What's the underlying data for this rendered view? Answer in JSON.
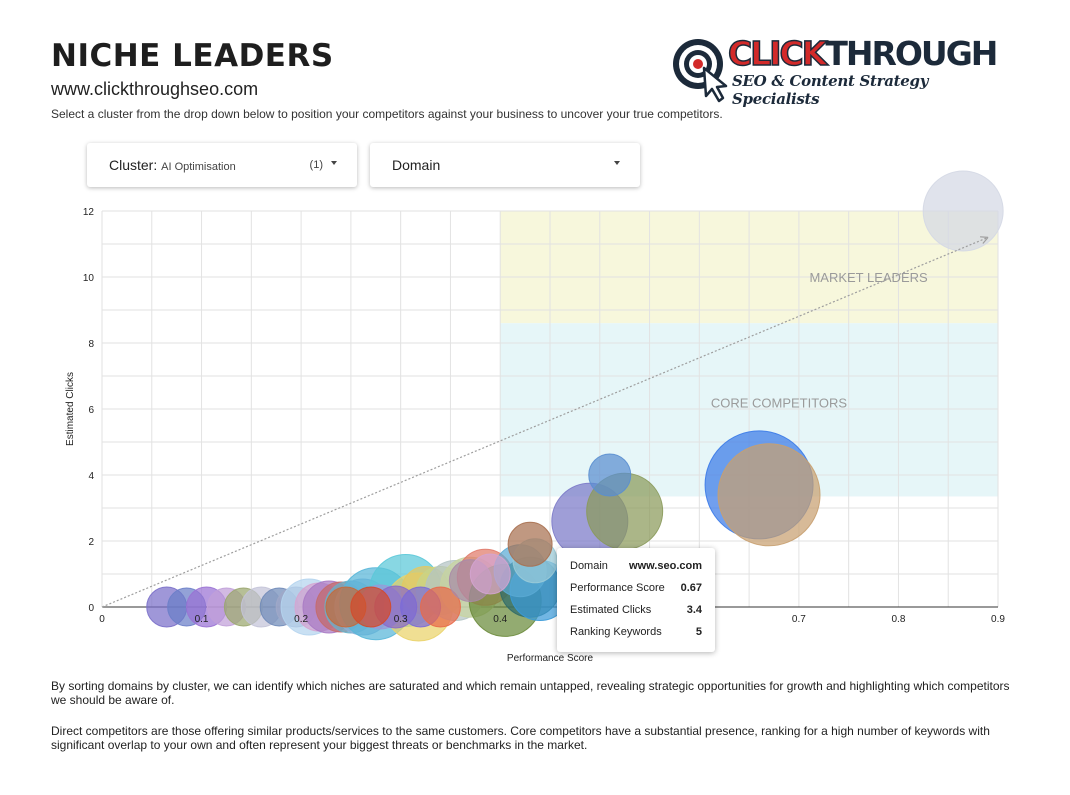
{
  "header": {
    "title": "NICHE LEADERS",
    "url": "www.clickthroughseo.com",
    "intro": "Select a cluster from the drop down below to position your competitors against your business to uncover your true competitors."
  },
  "logo": {
    "click": "CLICK",
    "through": "THROUGH",
    "tagline": "SEO & Content Strategy Specialists"
  },
  "filters": {
    "cluster_label": "Cluster:",
    "cluster_value": "AI Optimisation",
    "cluster_count": "(1)",
    "domain_label": "Domain"
  },
  "colors": {
    "market_leaders_zone": "#f7f7dc",
    "core_competitors_zone": "#e6f6f8",
    "trend_line": "#9e9e9e"
  },
  "chart_data": {
    "type": "scatter",
    "xlabel": "Performance Score",
    "ylabel": "Estimated Clicks",
    "xlim": [
      0,
      0.9
    ],
    "ylim": [
      0,
      12
    ],
    "x_ticks": [
      "0",
      "0.1",
      "0.2",
      "0.3",
      "0.4",
      "0.5",
      "0.6",
      "0.7",
      "0.8",
      "0.9"
    ],
    "y_ticks": [
      "0",
      "2",
      "4",
      "6",
      "8",
      "10",
      "12"
    ],
    "grid": true,
    "annotations": [
      {
        "text": "MARKET LEADERS",
        "x": 0.77,
        "y": 10
      },
      {
        "text": "CORE COMPETITORS",
        "x": 0.68,
        "y": 6.2
      }
    ],
    "zones": [
      {
        "name": "MARKET LEADERS",
        "x0": 0.4,
        "x1": 0.9,
        "y0": 8.6,
        "y1": 12
      },
      {
        "name": "CORE COMPETITORS",
        "x0": 0.4,
        "x1": 0.9,
        "y0": 3.35,
        "y1": 8.6
      }
    ],
    "trend": {
      "x0": 0,
      "y0": 0,
      "x1": 0.89,
      "y1": 11.2
    },
    "points": [
      {
        "x": 0.065,
        "y": 0,
        "r": 20,
        "color": "#7a6fc9"
      },
      {
        "x": 0.085,
        "y": 0,
        "r": 19,
        "color": "#6a7ec8"
      },
      {
        "x": 0.105,
        "y": 0,
        "r": 20,
        "color": "#9a72d4"
      },
      {
        "x": 0.125,
        "y": 0,
        "r": 19,
        "color": "#c0a0d8"
      },
      {
        "x": 0.142,
        "y": 0,
        "r": 19,
        "color": "#9aa66e"
      },
      {
        "x": 0.16,
        "y": 0,
        "r": 20,
        "color": "#c4c4d8"
      },
      {
        "x": 0.178,
        "y": 0,
        "r": 19,
        "color": "#6f8ab8"
      },
      {
        "x": 0.195,
        "y": 0,
        "r": 20,
        "color": "#a0a8c8"
      },
      {
        "x": 0.208,
        "y": 0,
        "r": 28,
        "color": "#b4d4ee"
      },
      {
        "x": 0.218,
        "y": 0,
        "r": 24,
        "color": "#d6a4d0"
      },
      {
        "x": 0.228,
        "y": 0,
        "r": 26,
        "color": "#a87ac4"
      },
      {
        "x": 0.24,
        "y": 0,
        "r": 25,
        "color": "#c46a6a"
      },
      {
        "x": 0.25,
        "y": 0,
        "r": 26,
        "color": "#6ab0c8"
      },
      {
        "x": 0.262,
        "y": 0,
        "r": 28,
        "color": "#8ab0d8"
      },
      {
        "x": 0.275,
        "y": 0.1,
        "r": 36,
        "color": "#58b6d8"
      },
      {
        "x": 0.305,
        "y": 0.5,
        "r": 36,
        "color": "#5ac8d8"
      },
      {
        "x": 0.318,
        "y": 0,
        "r": 34,
        "color": "#ead36a"
      },
      {
        "x": 0.325,
        "y": 0.5,
        "r": 24,
        "color": "#e4c860"
      },
      {
        "x": 0.34,
        "y": 0.5,
        "r": 24,
        "color": "#c8d488"
      },
      {
        "x": 0.355,
        "y": 0.5,
        "r": 30,
        "color": "#b4c4c4"
      },
      {
        "x": 0.37,
        "y": 0.6,
        "r": 30,
        "color": "#c8d4a0"
      },
      {
        "x": 0.385,
        "y": 0.9,
        "r": 28,
        "color": "#e07a6a"
      },
      {
        "x": 0.405,
        "y": 0.2,
        "r": 36,
        "color": "#6a8a3a"
      },
      {
        "x": 0.43,
        "y": 0.6,
        "r": 30,
        "color": "#2e6a6a"
      },
      {
        "x": 0.44,
        "y": 0.5,
        "r": 30,
        "color": "#3a9ad8"
      },
      {
        "x": 0.42,
        "y": 1.1,
        "r": 26,
        "color": "#5aaad4"
      },
      {
        "x": 0.435,
        "y": 1.4,
        "r": 22,
        "color": "#9acbd8"
      },
      {
        "x": 0.43,
        "y": 1.9,
        "r": 22,
        "color": "#a87050"
      },
      {
        "x": 0.28,
        "y": 0,
        "r": 22,
        "color": "#9a9ad8"
      },
      {
        "x": 0.295,
        "y": 0,
        "r": 21,
        "color": "#8a6ac8"
      },
      {
        "x": 0.245,
        "y": 0,
        "r": 20,
        "color": "#c46a3a"
      },
      {
        "x": 0.27,
        "y": 0,
        "r": 20,
        "color": "#d44a2a"
      },
      {
        "x": 0.32,
        "y": 0,
        "r": 20,
        "color": "#7a6ad8"
      },
      {
        "x": 0.34,
        "y": 0,
        "r": 20,
        "color": "#e86a4a"
      },
      {
        "x": 0.37,
        "y": 0.8,
        "r": 21,
        "color": "#a88aa8"
      },
      {
        "x": 0.39,
        "y": 1.0,
        "r": 20,
        "color": "#d4a4d0"
      },
      {
        "x": 0.49,
        "y": 2.6,
        "r": 38,
        "color": "#7a78c8"
      },
      {
        "x": 0.525,
        "y": 2.9,
        "r": 38,
        "color": "#8a9a5a"
      },
      {
        "x": 0.51,
        "y": 4.0,
        "r": 21,
        "color": "#5a8ed0"
      },
      {
        "x": 0.66,
        "y": 3.7,
        "r": 54,
        "color": "#3a7ae8"
      },
      {
        "x": 0.67,
        "y": 3.4,
        "r": 51,
        "color": "#c8a070"
      },
      {
        "x": 0.865,
        "y": 12.0,
        "r": 40,
        "color": "#d4d8e4"
      }
    ]
  },
  "tooltip": {
    "domain_label": "Domain",
    "domain_value": "www.seo.com",
    "performance_label": "Performance Score",
    "performance_value": "0.67",
    "clicks_label": "Estimated Clicks",
    "clicks_value": "3.4",
    "keywords_label": "Ranking Keywords",
    "keywords_value": "5"
  },
  "footer": {
    "paragraph1": "By sorting domains by cluster, we can identify which niches are saturated and which remain untapped, revealing strategic opportunities for growth and highlighting which competitors we should be aware of.",
    "paragraph2": "Direct competitors are those offering similar products/services to the same customers. Core competitors have a substantial presence, ranking for a high number of keywords with significant overlap to your own and often represent your biggest threats or benchmarks in the market."
  }
}
